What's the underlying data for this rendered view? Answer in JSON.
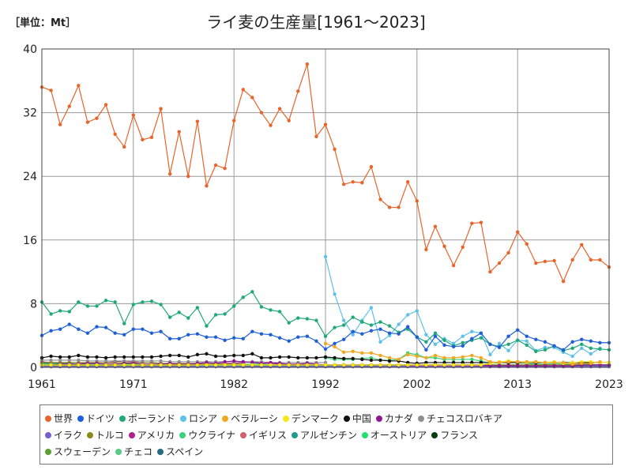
{
  "unit_label": "［単位：Mt］",
  "chart_data": {
    "type": "line",
    "title": "ライ麦の生産量[1961～2023]",
    "xlim": [
      1961,
      2023
    ],
    "ylim": [
      0,
      40
    ],
    "x_ticks": [
      1961,
      1971,
      1982,
      1992,
      2002,
      2013,
      2023
    ],
    "y_ticks": [
      0,
      8,
      16,
      24,
      32,
      40
    ],
    "series": [
      {
        "name": "世界",
        "color": "#e8642a",
        "start": 1961,
        "values": [
          35.2,
          34.8,
          30.5,
          32.8,
          35.4,
          30.8,
          31.3,
          33.0,
          29.3,
          27.7,
          31.7,
          28.6,
          28.9,
          32.5,
          24.3,
          29.6,
          24.0,
          30.9,
          22.8,
          25.4,
          25.0,
          31.0,
          34.9,
          33.9,
          32.0,
          30.4,
          32.5,
          31.0,
          34.7,
          38.1,
          29.0,
          30.5,
          27.4,
          23.0,
          23.3,
          23.2,
          25.2,
          21.1,
          20.1,
          20.1,
          23.3,
          20.9,
          14.8,
          17.7,
          15.2,
          12.8,
          15.1,
          18.1,
          18.2,
          12.0,
          13.1,
          14.4,
          17.0,
          15.5,
          13.1,
          13.3,
          13.4,
          10.8,
          13.5,
          15.4,
          13.5,
          13.5,
          12.6
        ]
      },
      {
        "name": "ドイツ",
        "color": "#1f5fd6",
        "start": 1961,
        "values": [
          4.0,
          4.6,
          4.8,
          5.4,
          4.8,
          4.3,
          5.1,
          5.0,
          4.3,
          4.1,
          4.8,
          4.8,
          4.3,
          4.5,
          3.6,
          3.6,
          4.1,
          4.2,
          3.8,
          3.8,
          3.4,
          3.7,
          3.6,
          4.5,
          4.2,
          4.1,
          3.7,
          3.3,
          3.8,
          3.9,
          3.3,
          2.3,
          3.0,
          3.5,
          4.5,
          4.2,
          4.6,
          4.8,
          4.3,
          4.2,
          5.1,
          3.8,
          2.2,
          3.9,
          2.8,
          2.6,
          2.7,
          3.6,
          4.3,
          2.9,
          2.5,
          3.9,
          4.7,
          3.9,
          3.5,
          3.2,
          2.7,
          2.2,
          3.2,
          3.5,
          3.3,
          3.1,
          3.1
        ]
      },
      {
        "name": "ポーランド",
        "color": "#1fa878",
        "start": 1961,
        "values": [
          8.2,
          6.7,
          7.1,
          7.0,
          8.2,
          7.7,
          7.7,
          8.4,
          8.2,
          5.5,
          7.9,
          8.2,
          8.3,
          7.9,
          6.3,
          6.9,
          6.2,
          7.5,
          5.2,
          6.6,
          6.7,
          7.7,
          8.8,
          9.5,
          7.6,
          7.2,
          7.0,
          5.6,
          6.2,
          6.1,
          5.9,
          3.9,
          5.0,
          5.3,
          6.3,
          5.7,
          5.3,
          5.7,
          5.2,
          4.4,
          4.8,
          3.8,
          3.2,
          4.3,
          3.4,
          2.7,
          3.1,
          3.4,
          3.7,
          2.9,
          2.6,
          2.9,
          3.4,
          2.8,
          2.0,
          2.2,
          2.7,
          2.1,
          2.4,
          2.9,
          2.4,
          2.3,
          2.2
        ]
      },
      {
        "name": "ロシア",
        "color": "#5fc0ea",
        "start": 1992,
        "values": [
          13.9,
          9.2,
          5.9,
          4.1,
          5.9,
          7.5,
          3.2,
          4.0,
          5.4,
          6.6,
          7.1,
          4.1,
          2.9,
          3.6,
          3.0,
          3.9,
          4.5,
          4.3,
          1.6,
          3.0,
          2.1,
          3.4,
          3.3,
          2.1,
          2.5,
          2.5,
          1.9,
          1.4,
          2.4,
          1.7,
          2.4
        ]
      },
      {
        "name": "ベラルーシ",
        "color": "#f0a820",
        "start": 1992,
        "values": [
          3.0,
          2.6,
          1.9,
          2.0,
          1.8,
          1.8,
          1.5,
          1.2,
          1.0,
          1.6,
          1.4,
          1.2,
          1.5,
          1.2,
          1.2,
          1.3,
          1.5,
          1.2,
          0.7,
          0.6,
          0.7,
          0.7,
          0.7,
          0.7,
          0.6,
          0.6,
          0.6,
          0.4,
          0.5,
          0.5,
          0.7
        ]
      },
      {
        "name": "デンマーク",
        "color": "#f5e61c",
        "start": 1961,
        "values": [
          0.3,
          0.3,
          0.3,
          0.3,
          0.3,
          0.3,
          0.3,
          0.3,
          0.3,
          0.3,
          0.3,
          0.3,
          0.3,
          0.3,
          0.3,
          0.3,
          0.3,
          0.3,
          0.3,
          0.3,
          0.3,
          0.3,
          0.3,
          0.3,
          0.3,
          0.3,
          0.3,
          0.3,
          0.3,
          0.3,
          0.3,
          0.3,
          0.3,
          0.3,
          0.3,
          0.3,
          0.3,
          0.3,
          0.3,
          0.3,
          0.3,
          0.3,
          0.3,
          0.3,
          0.3,
          0.3,
          0.3,
          0.3,
          0.3,
          0.5,
          0.7,
          0.8,
          0.7,
          0.6,
          0.7,
          0.6,
          0.7,
          0.5,
          0.6,
          0.7,
          0.7,
          0.6,
          0.6
        ]
      },
      {
        "name": "中国",
        "color": "#111111",
        "start": 1961,
        "values": [
          1.2,
          1.4,
          1.3,
          1.3,
          1.5,
          1.3,
          1.3,
          1.2,
          1.3,
          1.3,
          1.3,
          1.3,
          1.3,
          1.4,
          1.5,
          1.5,
          1.3,
          1.6,
          1.7,
          1.4,
          1.4,
          1.5,
          1.5,
          1.7,
          1.2,
          1.2,
          1.3,
          1.3,
          1.2,
          1.2,
          1.2,
          1.3,
          1.2,
          1.1,
          1.1,
          1.0,
          0.9,
          0.9,
          0.8,
          0.8,
          0.6,
          0.5,
          0.6,
          0.6,
          0.6,
          0.6,
          0.6,
          0.6,
          0.6,
          0.6,
          0.6,
          0.6,
          0.6,
          0.6,
          0.6,
          0.6,
          0.6,
          0.6,
          0.6,
          0.6,
          0.6,
          0.6,
          0.6
        ]
      },
      {
        "name": "カナダ",
        "color": "#8b1a8f",
        "start": 1961,
        "values": [
          0.3,
          0.3,
          0.4,
          0.4,
          0.4,
          0.5,
          0.5,
          0.4,
          0.4,
          0.5,
          0.5,
          0.4,
          0.4,
          0.4,
          0.5,
          0.4,
          0.4,
          0.5,
          0.6,
          0.5,
          0.7,
          0.8,
          0.7,
          0.6,
          0.5,
          0.6,
          0.5,
          0.4,
          0.4,
          0.5,
          0.4,
          0.3,
          0.3,
          0.3,
          0.3,
          0.3,
          0.3,
          0.3,
          0.3,
          0.3,
          0.3,
          0.3,
          0.3,
          0.3,
          0.3,
          0.3,
          0.3,
          0.3,
          0.3,
          0.2,
          0.2,
          0.2,
          0.2,
          0.2,
          0.2,
          0.2,
          0.2,
          0.2,
          0.2,
          0.3,
          0.3,
          0.3,
          0.3
        ]
      },
      {
        "name": "チェコスロバキア",
        "color": "#8e8e8e",
        "start": 1961,
        "values": [
          0.9,
          0.9,
          0.9,
          0.9,
          0.9,
          0.8,
          0.8,
          0.8,
          0.8,
          0.8,
          0.8,
          0.8,
          0.8,
          0.8,
          0.7,
          0.7,
          0.7,
          0.7,
          0.7,
          0.7,
          0.7,
          0.7,
          0.7,
          0.7,
          0.7,
          0.6,
          0.6,
          0.6,
          0.6,
          0.6,
          0.6,
          0.6
        ]
      },
      {
        "name": "イラク",
        "color": "#7a5fd0",
        "start": 1961,
        "values": [
          0.1,
          0.1,
          0.1,
          0.1,
          0.1,
          0.1,
          0.1,
          0.1,
          0.1,
          0.1,
          0.1,
          0.1,
          0.1,
          0.1,
          0.1,
          0.1,
          0.1,
          0.1,
          0.1,
          0.1,
          0.1,
          0.1,
          0.1,
          0.1,
          0.1,
          0.1,
          0.1,
          0.1,
          0.1,
          0.1,
          0.1,
          0.1,
          0.1,
          0.1,
          0.1,
          0.1,
          0.1,
          0.1,
          0.1,
          0.1,
          0.1,
          0.1,
          0.1,
          0.1,
          0.1,
          0.1,
          0.1,
          0.1,
          0.1,
          0.1,
          0.1,
          0.1,
          0.1,
          0.1,
          0.1,
          0.1,
          0.1,
          0.1,
          0.1,
          0.1,
          0.1,
          0.1,
          0.1
        ]
      },
      {
        "name": "トルコ",
        "color": "#8a8a1a",
        "start": 1961,
        "values": [
          0.6,
          0.6,
          0.6,
          0.6,
          0.6,
          0.6,
          0.6,
          0.6,
          0.6,
          0.6,
          0.6,
          0.6,
          0.6,
          0.5,
          0.5,
          0.5,
          0.5,
          0.5,
          0.4,
          0.4,
          0.4,
          0.4,
          0.4,
          0.3,
          0.3,
          0.3,
          0.3,
          0.3,
          0.3,
          0.3,
          0.3,
          0.3,
          0.3,
          0.3,
          0.3,
          0.3,
          0.3,
          0.3,
          0.3,
          0.3,
          0.3,
          0.3,
          0.3,
          0.3,
          0.3,
          0.3,
          0.3,
          0.3,
          0.3,
          0.3,
          0.3,
          0.3,
          0.3,
          0.3,
          0.3,
          0.3,
          0.3,
          0.3,
          0.3,
          0.3,
          0.3,
          0.3,
          0.3
        ]
      },
      {
        "name": "アメリカ",
        "color": "#b0208a",
        "start": 1961,
        "values": [
          0.7,
          0.6,
          0.6,
          0.6,
          0.6,
          0.5,
          0.6,
          0.6,
          0.7,
          0.8,
          0.7,
          0.6,
          0.6,
          0.5,
          0.4,
          0.4,
          0.4,
          0.4,
          0.4,
          0.4,
          0.5,
          0.5,
          0.6,
          0.7,
          0.5,
          0.5,
          0.4,
          0.4,
          0.4,
          0.3,
          0.3,
          0.3,
          0.3,
          0.3,
          0.3,
          0.3,
          0.3,
          0.3,
          0.3,
          0.3,
          0.2,
          0.2,
          0.2,
          0.2,
          0.2,
          0.2,
          0.2,
          0.2,
          0.2,
          0.2,
          0.2,
          0.2,
          0.2,
          0.2,
          0.3,
          0.3,
          0.3,
          0.3,
          0.3,
          0.3,
          0.3,
          0.3,
          0.3
        ]
      },
      {
        "name": "ウクライナ",
        "color": "#3ad07a",
        "start": 1992,
        "values": [
          1.2,
          1.0,
          1.0,
          1.0,
          1.1,
          1.2,
          0.9,
          0.9,
          1.0,
          1.8,
          1.6,
          1.2,
          1.2,
          1.0,
          1.0,
          1.0,
          1.0,
          0.8,
          0.5,
          0.6,
          0.6,
          0.6,
          0.5,
          0.4,
          0.4,
          0.5,
          0.4,
          0.4,
          0.4,
          0.4,
          0.3
        ]
      },
      {
        "name": "イギリス",
        "color": "#d06070",
        "start": 1961,
        "values": [
          0.1,
          0.1,
          0.1,
          0.1,
          0.1,
          0.1,
          0.1,
          0.1,
          0.1,
          0.1,
          0.1,
          0.1,
          0.1,
          0.1,
          0.1,
          0.1,
          0.1,
          0.1,
          0.1,
          0.1,
          0.1,
          0.1,
          0.1,
          0.1,
          0.1,
          0.1,
          0.1,
          0.1,
          0.1,
          0.1,
          0.1,
          0.1,
          0.1,
          0.1,
          0.1,
          0.1,
          0.1,
          0.1,
          0.1,
          0.1,
          0.1,
          0.1,
          0.1,
          0.1,
          0.1,
          0.1,
          0.1,
          0.1,
          0.1,
          0.1,
          0.1,
          0.1,
          0.1,
          0.1,
          0.1,
          0.1,
          0.1,
          0.1,
          0.1,
          0.1,
          0.1,
          0.1,
          0.1
        ]
      },
      {
        "name": "アルゼンチン",
        "color": "#209a90",
        "start": 1961,
        "values": [
          0.5,
          0.5,
          0.5,
          0.5,
          0.4,
          0.4,
          0.4,
          0.4,
          0.4,
          0.3,
          0.3,
          0.3,
          0.3,
          0.3,
          0.3,
          0.3,
          0.3,
          0.2,
          0.2,
          0.2,
          0.2,
          0.2,
          0.2,
          0.2,
          0.2,
          0.2,
          0.2,
          0.2,
          0.2,
          0.2,
          0.2,
          0.2,
          0.2,
          0.2,
          0.2,
          0.2,
          0.2,
          0.2,
          0.2,
          0.2,
          0.2,
          0.2,
          0.2,
          0.2,
          0.2,
          0.2,
          0.2,
          0.2,
          0.2,
          0.2,
          0.2,
          0.2,
          0.2,
          0.2,
          0.2,
          0.2,
          0.2,
          0.2,
          0.2,
          0.2,
          0.2,
          0.2,
          0.2
        ]
      },
      {
        "name": "オーストリア",
        "color": "#20e070",
        "start": 1961,
        "values": [
          0.4,
          0.4,
          0.4,
          0.4,
          0.4,
          0.4,
          0.4,
          0.4,
          0.4,
          0.4,
          0.4,
          0.4,
          0.4,
          0.4,
          0.4,
          0.4,
          0.4,
          0.4,
          0.4,
          0.4,
          0.4,
          0.4,
          0.4,
          0.4,
          0.4,
          0.3,
          0.3,
          0.3,
          0.3,
          0.3,
          0.3,
          0.3,
          0.3,
          0.3,
          0.3,
          0.2,
          0.2,
          0.2,
          0.2,
          0.2,
          0.2,
          0.2,
          0.2,
          0.2,
          0.2,
          0.2,
          0.2,
          0.2,
          0.2,
          0.2,
          0.2,
          0.2,
          0.2,
          0.2,
          0.2,
          0.2,
          0.2,
          0.2,
          0.2,
          0.2,
          0.2,
          0.2,
          0.2
        ]
      },
      {
        "name": "フランス",
        "color": "#0a3a10",
        "start": 1961,
        "values": [
          0.4,
          0.4,
          0.4,
          0.4,
          0.4,
          0.3,
          0.3,
          0.3,
          0.3,
          0.3,
          0.3,
          0.3,
          0.3,
          0.3,
          0.3,
          0.3,
          0.3,
          0.3,
          0.3,
          0.3,
          0.3,
          0.3,
          0.3,
          0.3,
          0.3,
          0.2,
          0.2,
          0.2,
          0.2,
          0.2,
          0.2,
          0.2,
          0.2,
          0.2,
          0.2,
          0.2,
          0.2,
          0.2,
          0.2,
          0.2,
          0.2,
          0.2,
          0.2,
          0.2,
          0.2,
          0.2,
          0.2,
          0.2,
          0.2,
          0.2,
          0.2,
          0.2,
          0.2,
          0.2,
          0.2,
          0.2,
          0.2,
          0.2,
          0.2,
          0.2,
          0.2,
          0.2,
          0.2
        ]
      },
      {
        "name": "スウェーデン",
        "color": "#5aa030",
        "start": 1961,
        "values": [
          0.2,
          0.2,
          0.2,
          0.2,
          0.2,
          0.2,
          0.2,
          0.2,
          0.2,
          0.2,
          0.2,
          0.2,
          0.2,
          0.2,
          0.2,
          0.2,
          0.2,
          0.2,
          0.2,
          0.2,
          0.2,
          0.2,
          0.2,
          0.2,
          0.2,
          0.2,
          0.2,
          0.2,
          0.2,
          0.2,
          0.2,
          0.2,
          0.2,
          0.2,
          0.2,
          0.2,
          0.2,
          0.2,
          0.2,
          0.2,
          0.2,
          0.2,
          0.2,
          0.2,
          0.2,
          0.2,
          0.2,
          0.2,
          0.2,
          0.2,
          0.2,
          0.2,
          0.2,
          0.2,
          0.2,
          0.2,
          0.2,
          0.2,
          0.2,
          0.2,
          0.2,
          0.2,
          0.2
        ]
      },
      {
        "name": "チェコ",
        "color": "#5ac888",
        "start": 1993,
        "values": [
          0.3,
          0.3,
          0.3,
          0.3,
          0.3,
          0.3,
          0.3,
          0.3,
          0.3,
          0.3,
          0.3,
          0.3,
          0.3,
          0.3,
          0.3,
          0.3,
          0.3,
          0.3,
          0.3,
          0.3,
          0.3,
          0.3,
          0.2,
          0.2,
          0.2,
          0.2,
          0.2,
          0.2,
          0.2,
          0.2,
          0.2
        ]
      },
      {
        "name": "スペイン",
        "color": "#2a6a80",
        "start": 1961,
        "values": [
          0.4,
          0.4,
          0.4,
          0.4,
          0.4,
          0.3,
          0.3,
          0.3,
          0.3,
          0.3,
          0.3,
          0.3,
          0.3,
          0.3,
          0.3,
          0.3,
          0.3,
          0.3,
          0.3,
          0.3,
          0.3,
          0.3,
          0.3,
          0.3,
          0.3,
          0.3,
          0.3,
          0.3,
          0.3,
          0.3,
          0.3,
          0.3,
          0.3,
          0.3,
          0.3,
          0.3,
          0.3,
          0.3,
          0.3,
          0.3,
          0.3,
          0.3,
          0.3,
          0.3,
          0.3,
          0.3,
          0.3,
          0.3,
          0.3,
          0.3,
          0.3,
          0.3,
          0.3,
          0.3,
          0.3,
          0.3,
          0.3,
          0.3,
          0.3,
          0.3,
          0.3,
          0.3,
          0.3
        ]
      }
    ],
    "legend_rows": [
      [
        "世界",
        "ドイツ",
        "ポーランド",
        "ロシア",
        "ベラルーシ",
        "デンマーク",
        "中国",
        "カナダ",
        "チェコスロバキア"
      ],
      [
        "イラク",
        "トルコ",
        "アメリカ",
        "ウクライナ",
        "イギリス",
        "アルゼンチン",
        "オーストリア",
        "フランス"
      ],
      [
        "スウェーデン",
        "チェコ",
        "スペイン"
      ]
    ]
  }
}
